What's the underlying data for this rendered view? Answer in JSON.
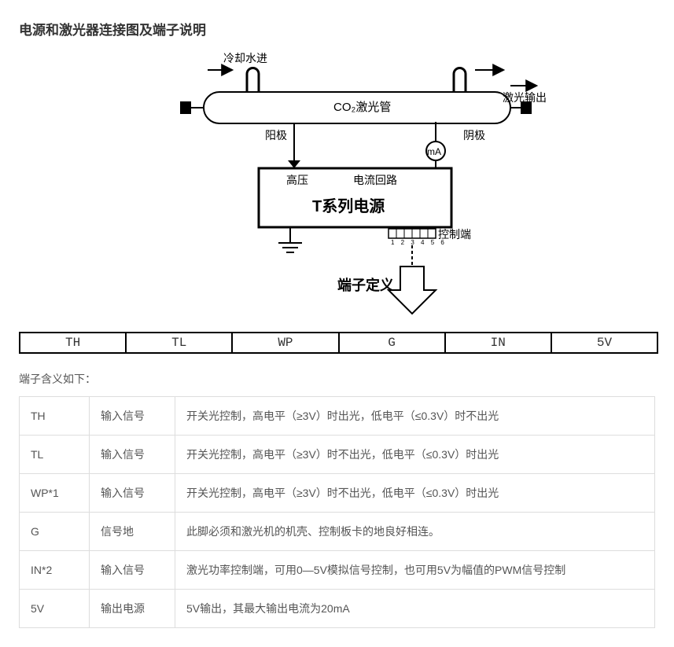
{
  "title": "电源和激光器连接图及端子说明",
  "diagram": {
    "cooling_in_label": "冷却水进",
    "laser_output_label": "激光输出",
    "tube_label": "CO₂激光管",
    "anode_label": "阳极",
    "cathode_label": "阴极",
    "ma_label": "mA",
    "hv_label": "高压",
    "return_label": "电流回路",
    "supply_label": "T系列电源",
    "ctrl_label": "控制端",
    "pins_label": "1 2 3 4 5 6",
    "definition_label": "端子定义",
    "stroke": "#000000",
    "bg": "#ffffff",
    "font_main_zh": 14,
    "font_small": 11
  },
  "pin_row": [
    "TH",
    "TL",
    "WP",
    "G",
    "IN",
    "5V"
  ],
  "term_caption": "端子含义如下：",
  "terms": [
    {
      "pin": "TH",
      "type": "输入信号",
      "desc": "开关光控制，高电平（≥3V）时出光，低电平（≤0.3V）时不出光"
    },
    {
      "pin": "TL",
      "type": "输入信号",
      "desc": "开关光控制，高电平（≥3V）时不出光，低电平（≤0.3V）时出光"
    },
    {
      "pin": "WP*1",
      "type": "输入信号",
      "desc": "开关光控制，高电平（≥3V）时不出光，低电平（≤0.3V）时出光"
    },
    {
      "pin": "G",
      "type": "信号地",
      "desc": "此脚必须和激光机的机壳、控制板卡的地良好相连。"
    },
    {
      "pin": "IN*2",
      "type": "输入信号",
      "desc": "激光功率控制端，可用0—5V模拟信号控制，也可用5V为幅值的PWM信号控制"
    },
    {
      "pin": "5V",
      "type": "输出电源",
      "desc": "5V输出，其最大输出电流为20mA"
    }
  ]
}
